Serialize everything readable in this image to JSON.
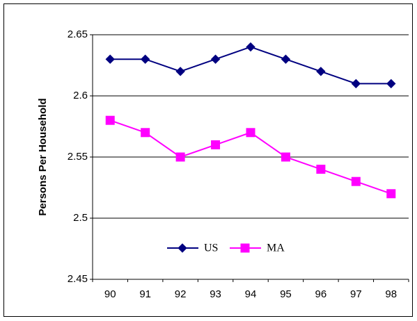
{
  "chart_data": {
    "type": "line",
    "y_label": "Persons Per Household",
    "categories": [
      "90",
      "91",
      "92",
      "93",
      "94",
      "95",
      "96",
      "97",
      "98"
    ],
    "series": [
      {
        "name": "US",
        "color": "#000080",
        "marker": "diamond",
        "values": [
          2.63,
          2.63,
          2.62,
          2.63,
          2.64,
          2.63,
          2.62,
          2.61,
          2.61
        ]
      },
      {
        "name": "MA",
        "color": "#ff00ff",
        "marker": "square",
        "values": [
          2.58,
          2.57,
          2.55,
          2.56,
          2.57,
          2.55,
          2.54,
          2.53,
          2.52
        ]
      }
    ],
    "ylim": [
      2.45,
      2.65
    ],
    "yticks": [
      2.45,
      2.5,
      2.55,
      2.6,
      2.65
    ],
    "grid": true,
    "legend": "bottom"
  }
}
